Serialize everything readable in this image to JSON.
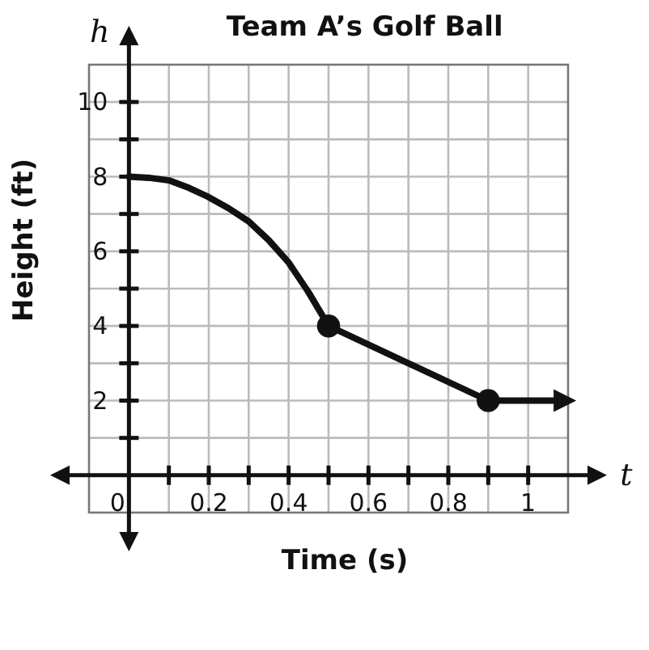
{
  "chart_data": {
    "type": "line",
    "title": "Team A’s Golf Ball",
    "xlabel": "Time (s)",
    "ylabel": "Height (ft)",
    "annotations": [
      "h",
      "t"
    ],
    "xlim": [
      -0.1,
      1.1
    ],
    "ylim": [
      -1,
      11
    ],
    "xticks": [
      {
        "value": 0,
        "label": "0"
      },
      {
        "value": 0.1,
        "label": null
      },
      0.2,
      {
        "value": 0.3,
        "label": null
      },
      0.4,
      {
        "value": 0.5,
        "label": null
      },
      0.6,
      {
        "value": 0.7,
        "label": null
      },
      0.8,
      {
        "value": 0.9,
        "label": null
      },
      1
    ],
    "yticks": [
      {
        "value": 1,
        "label": null
      },
      2,
      {
        "value": 3,
        "label": null
      },
      4,
      {
        "value": 5,
        "label": null
      },
      6,
      {
        "value": 7,
        "label": null
      },
      8,
      {
        "value": 9,
        "label": null
      },
      10
    ],
    "grid": true,
    "marker": "none",
    "series": [
      {
        "type": "line",
        "color": "#111111",
        "x": [
          0,
          0.05,
          0.1,
          0.15,
          0.2,
          0.25,
          0.3,
          0.35,
          0.4,
          0.425,
          0.45,
          0.475,
          0.5,
          0.9,
          1.08
        ],
        "values": [
          8,
          7.97,
          7.9,
          7.7,
          7.45,
          7.15,
          6.8,
          6.3,
          5.7,
          5.3,
          4.9,
          4.45,
          4,
          2,
          2
        ]
      },
      {
        "type": "scatter",
        "color": "#111111",
        "marker": "circle",
        "x": [
          0.5,
          0.9
        ],
        "values": [
          4,
          2
        ]
      }
    ]
  }
}
